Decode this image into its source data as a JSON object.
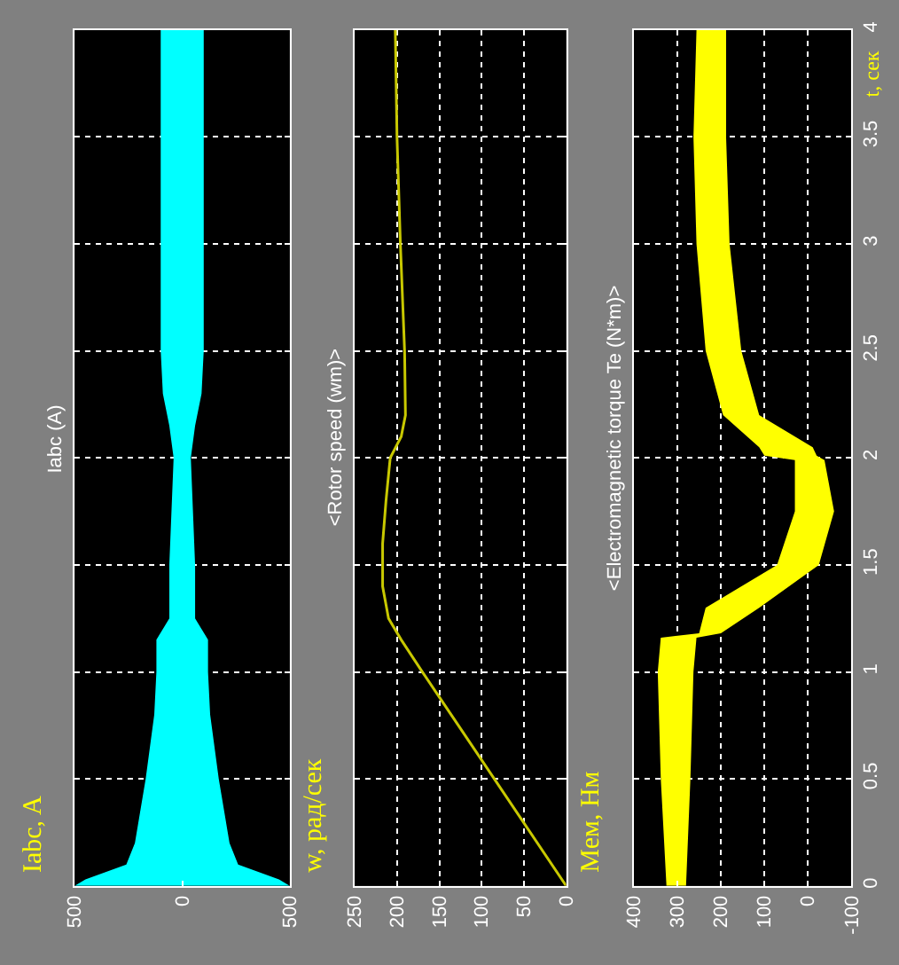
{
  "chart_data": [
    {
      "type": "line",
      "orientation": "horizontal",
      "title": "Iabc (A)",
      "annotations": [
        "Iabc, A"
      ],
      "x": [
        0,
        0.03,
        0.1,
        0.2,
        0.5,
        0.8,
        1.0,
        1.15,
        1.2,
        1.25,
        1.5,
        2.0,
        2.15,
        2.3,
        2.5,
        3.0,
        3.5,
        4.0
      ],
      "series": [
        {
          "color": "#00ffff",
          "values": [
            null,
            null,
            null,
            null,
            null,
            null,
            null,
            null,
            null,
            null,
            null,
            null,
            null,
            null,
            null,
            null,
            null,
            null
          ],
          "lower": [
            -500,
            -450,
            -260,
            -220,
            -170,
            -130,
            -120,
            -120,
            -90,
            -60,
            -60,
            -40,
            -60,
            -90,
            -100,
            -100,
            -100,
            -100
          ],
          "upper": [
            500,
            450,
            260,
            220,
            170,
            130,
            120,
            120,
            90,
            60,
            60,
            40,
            60,
            90,
            100,
            100,
            100,
            100
          ]
        }
      ],
      "ylim": [
        0,
        4
      ],
      "yticks": [
        0,
        0.5,
        1,
        1.5,
        2,
        2.5,
        3,
        3.5,
        4
      ],
      "xlim": [
        500,
        -500
      ],
      "xticks": [
        {
          "value": -500,
          "label": "500"
        },
        0,
        500
      ],
      "grid": true,
      "tick_labels": "x"
    },
    {
      "type": "line",
      "orientation": "horizontal",
      "title": "<Rotor speed (wm)>",
      "annotations": [
        "w, рад/сек"
      ],
      "x": [
        0,
        0.5,
        1.0,
        1.15,
        1.25,
        1.4,
        1.6,
        1.8,
        2.0,
        2.1,
        2.2,
        2.5,
        3.0,
        3.5,
        4.0
      ],
      "series": [
        {
          "color": "#c8c800",
          "values": [
            0,
            85,
            170,
            195,
            210,
            217,
            217,
            213,
            208,
            195,
            190,
            191,
            196,
            200,
            202
          ]
        }
      ],
      "ylim": [
        0,
        4
      ],
      "yticks": [
        0,
        0.5,
        1,
        1.5,
        2,
        2.5,
        3,
        3.5,
        4
      ],
      "xlim": [
        250,
        0
      ],
      "xticks": [
        0,
        50,
        100,
        150,
        200,
        250
      ],
      "grid": true,
      "tick_labels": "x"
    },
    {
      "type": "line",
      "orientation": "horizontal",
      "title": "<Electromagnetic torque Te (N*m)>",
      "annotations": [
        "Мем, Нм"
      ],
      "ylabel": "t, сек",
      "x": [
        0,
        0.5,
        1.0,
        1.16,
        1.18,
        1.3,
        1.5,
        1.75,
        1.99,
        2.01,
        2.05,
        2.2,
        2.5,
        3.0,
        3.5,
        4.0
      ],
      "series": [
        {
          "color": "#ffff00",
          "values": [
            null,
            null,
            null,
            null,
            null,
            null,
            null,
            null,
            null,
            null,
            null,
            null,
            null,
            null,
            null,
            null
          ],
          "lower": [
            280,
            270,
            263,
            256,
            200,
            112,
            -25,
            -60,
            -38,
            -20,
            -11,
            112,
            153,
            180,
            188,
            188
          ],
          "upper": [
            325,
            338,
            345,
            338,
            250,
            235,
            71,
            30,
            30,
            100,
            112,
            195,
            235,
            256,
            263,
            256
          ]
        }
      ],
      "ylim": [
        0,
        4
      ],
      "yticks": [
        0,
        0.5,
        1,
        1.5,
        2,
        2.5,
        3,
        3.5,
        4
      ],
      "xlim": [
        400,
        -100
      ],
      "xticks": [
        -100,
        0,
        100,
        200,
        300,
        400
      ],
      "grid": true
    }
  ]
}
